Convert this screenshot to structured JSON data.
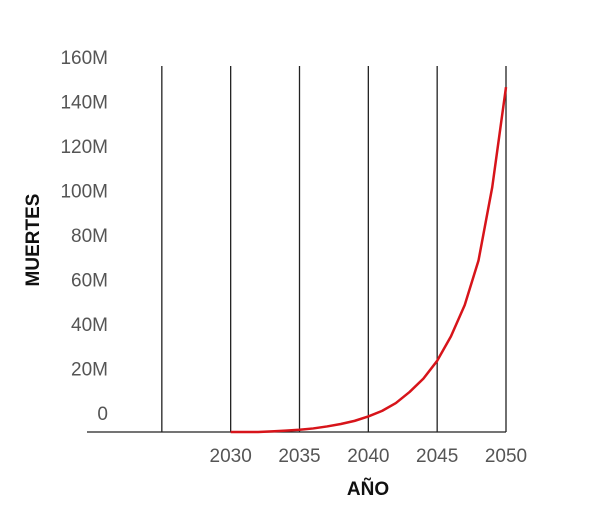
{
  "chart_data": {
    "type": "line",
    "x_label": "AÑO",
    "y_label": "MUERTES",
    "x": [
      2030,
      2031,
      2032,
      2033,
      2034,
      2035,
      2036,
      2037,
      2038,
      2039,
      2040,
      2041,
      2042,
      2043,
      2044,
      2045,
      2046,
      2047,
      2048,
      2049,
      2050
    ],
    "series": [
      {
        "color": "#d7141a",
        "values": [
          0,
          0,
          0,
          0.3,
          0.6,
          1,
          1.6,
          2.5,
          3.6,
          5,
          7,
          9.5,
          13,
          18,
          24,
          32,
          43,
          57,
          77,
          110,
          155
        ]
      }
    ],
    "xlim": [
      2020,
      2050
    ],
    "xticks": [
      {
        "value": 2025,
        "label": null
      },
      2030,
      2035,
      2040,
      2045,
      2050
    ],
    "ylim": [
      0,
      160
    ],
    "yticks": [
      0,
      {
        "value": 20,
        "label": "20M"
      },
      {
        "value": 40,
        "label": "40M"
      },
      {
        "value": 60,
        "label": "60M"
      },
      {
        "value": 80,
        "label": "80M"
      },
      {
        "value": 100,
        "label": "100M"
      },
      {
        "value": 120,
        "label": "120M"
      },
      {
        "value": 140,
        "label": "140M"
      },
      {
        "value": 160,
        "label": "160M"
      }
    ],
    "grid": "x"
  }
}
